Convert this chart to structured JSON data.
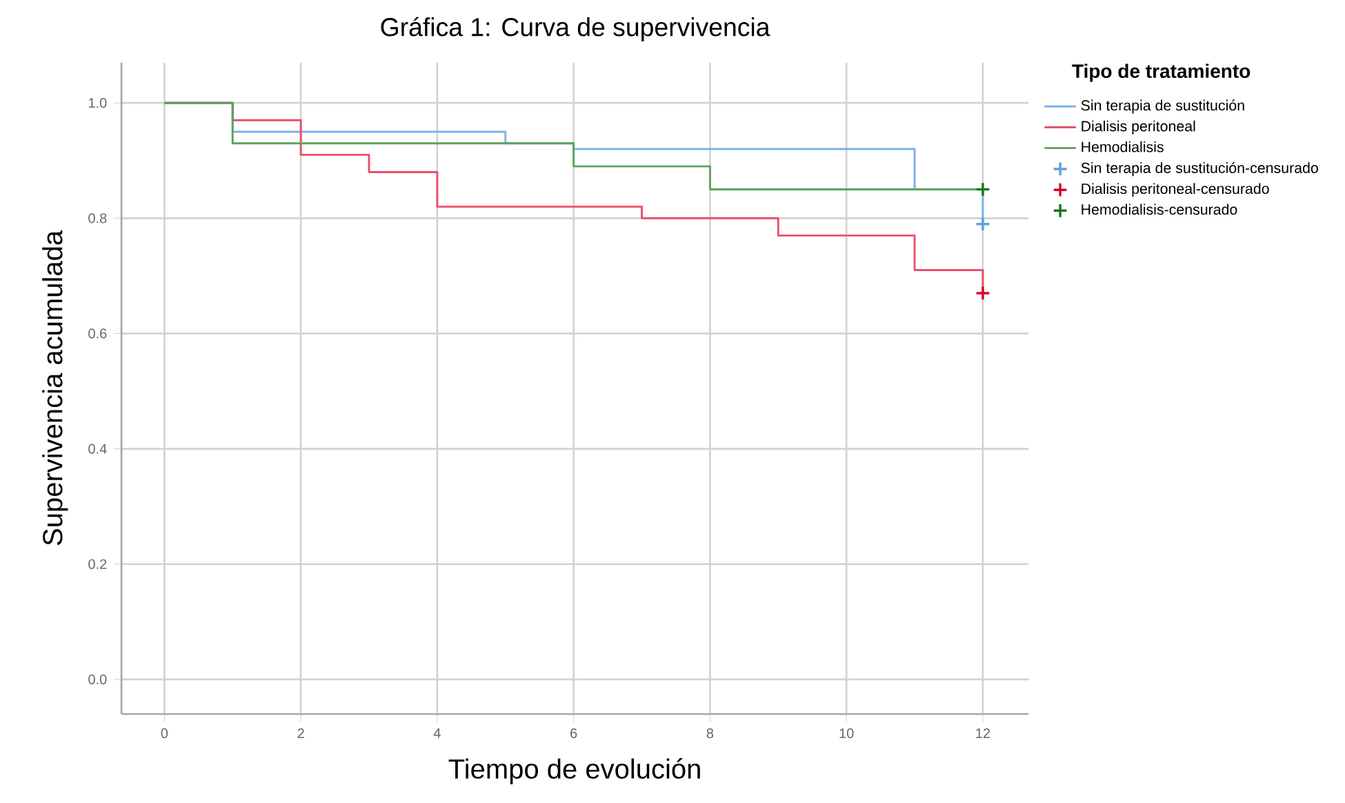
{
  "chart_data": {
    "type": "step",
    "title": "Gráfica 1: Curva de supervivencia",
    "xlabel": "Tiempo de evolución",
    "ylabel": "Supervivencia acumulada",
    "legend_title": "Tipo de tratamiento",
    "xlim": [
      -0.63,
      12.67
    ],
    "ylim": [
      -0.06,
      1.07
    ],
    "xticks": [
      0,
      2,
      4,
      6,
      8,
      10,
      12
    ],
    "yticks": [
      {
        "value": 0,
        "label": "0.0"
      },
      {
        "value": 0.2,
        "label": "0.2"
      },
      {
        "value": 0.4,
        "label": "0.4"
      },
      {
        "value": 0.6,
        "label": "0.6"
      },
      {
        "value": 0.8,
        "label": "0.8"
      },
      {
        "value": 1,
        "label": "1.0"
      }
    ],
    "grid": true,
    "legend": "right",
    "marker": "none",
    "line_style": "solid",
    "series": [
      {
        "name": "Sin terapia de sustitución",
        "color": "#7eb0e8",
        "x": [
          0,
          1,
          5,
          6,
          11,
          12
        ],
        "values": [
          1,
          0.95,
          0.93,
          0.92,
          0.85,
          0.79
        ]
      },
      {
        "name": "Dialisis peritoneal",
        "color": "#e8506c",
        "x": [
          0,
          1,
          2,
          3,
          4,
          7,
          9,
          11,
          12
        ],
        "values": [
          1,
          0.97,
          0.91,
          0.88,
          0.82,
          0.8,
          0.77,
          0.71,
          0.67
        ]
      },
      {
        "name": "Hemodialisis",
        "color": "#5aa45a",
        "x": [
          0,
          1,
          6,
          8,
          12
        ],
        "values": [
          1,
          0.93,
          0.89,
          0.85,
          0.85
        ]
      },
      {
        "name": "Sin terapia de sustitución-censurado",
        "type": "scatter",
        "marker": "cross",
        "color": "#5f9fe0",
        "x": [
          12
        ],
        "values": [
          0.79
        ]
      },
      {
        "name": "Dialisis peritoneal-censurado",
        "type": "scatter",
        "marker": "cross",
        "color": "#d8002a",
        "x": [
          12
        ],
        "values": [
          0.67
        ]
      },
      {
        "name": "Hemodialisis-censurado",
        "type": "scatter",
        "marker": "cross",
        "color": "#1a7a1a",
        "x": [
          12
        ],
        "values": [
          0.85
        ]
      }
    ]
  }
}
